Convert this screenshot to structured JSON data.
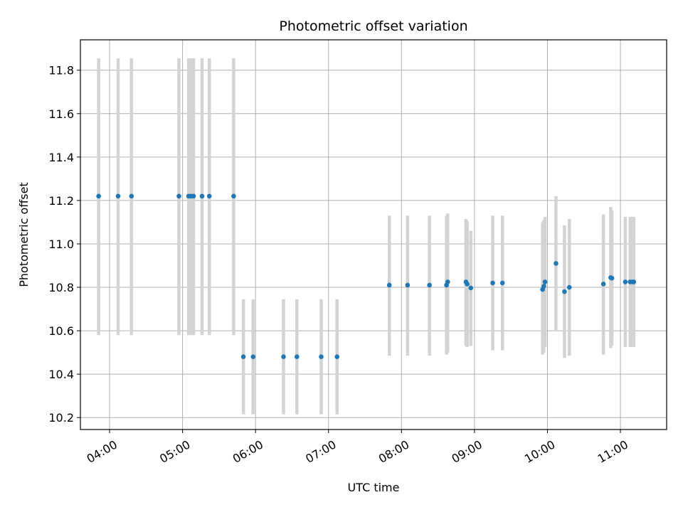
{
  "chart_data": {
    "type": "scatter",
    "title": "Photometric offset variation",
    "xlabel": "UTC time",
    "ylabel": "Photometric offset",
    "xlim": [
      "03:36",
      "11:38"
    ],
    "ylim": [
      10.145,
      11.94
    ],
    "grid": true,
    "x_ticks": [
      "04:00",
      "05:00",
      "06:00",
      "07:00",
      "08:00",
      "09:00",
      "10:00",
      "11:00"
    ],
    "y_ticks": [
      10.2,
      10.4,
      10.6,
      10.8,
      11.0,
      11.2,
      11.4,
      11.6,
      11.8
    ],
    "y_tick_labels": [
      "10.2",
      "10.4",
      "10.6",
      "10.8",
      "11.0",
      "11.2",
      "11.4",
      "11.6",
      "11.8"
    ],
    "colors": {
      "points": "#1f77b4",
      "error_bars": "#d3d3d3",
      "grid": "#b0b0b0"
    },
    "series": [
      {
        "points": [
          {
            "x": "03:51",
            "y": 11.22,
            "ylow": 10.58,
            "yhigh": 11.855
          },
          {
            "x": "04:07",
            "y": 11.22,
            "ylow": 10.58,
            "yhigh": 11.855
          },
          {
            "x": "04:18",
            "y": 11.22,
            "ylow": 10.58,
            "yhigh": 11.855
          },
          {
            "x": "04:57",
            "y": 11.22,
            "ylow": 10.58,
            "yhigh": 11.855
          },
          {
            "x": "05:05",
            "y": 11.22,
            "ylow": 10.58,
            "yhigh": 11.855
          },
          {
            "x": "05:07",
            "y": 11.22,
            "ylow": 10.58,
            "yhigh": 11.855
          },
          {
            "x": "05:09",
            "y": 11.22,
            "ylow": 10.58,
            "yhigh": 11.855
          },
          {
            "x": "05:16",
            "y": 11.22,
            "ylow": 10.58,
            "yhigh": 11.855
          },
          {
            "x": "05:22",
            "y": 11.22,
            "ylow": 10.58,
            "yhigh": 11.855
          },
          {
            "x": "05:42",
            "y": 11.22,
            "ylow": 10.58,
            "yhigh": 11.855
          },
          {
            "x": "05:50",
            "y": 10.48,
            "ylow": 10.215,
            "yhigh": 10.745
          },
          {
            "x": "05:58",
            "y": 10.48,
            "ylow": 10.215,
            "yhigh": 10.745
          },
          {
            "x": "06:23",
            "y": 10.48,
            "ylow": 10.215,
            "yhigh": 10.745
          },
          {
            "x": "06:34",
            "y": 10.48,
            "ylow": 10.215,
            "yhigh": 10.745
          },
          {
            "x": "06:54",
            "y": 10.48,
            "ylow": 10.215,
            "yhigh": 10.745
          },
          {
            "x": "07:07",
            "y": 10.48,
            "ylow": 10.215,
            "yhigh": 10.745
          },
          {
            "x": "07:50",
            "y": 10.81,
            "ylow": 10.485,
            "yhigh": 11.13
          },
          {
            "x": "08:05",
            "y": 10.81,
            "ylow": 10.485,
            "yhigh": 11.13
          },
          {
            "x": "08:23",
            "y": 10.81,
            "ylow": 10.485,
            "yhigh": 11.13
          },
          {
            "x": "08:37",
            "y": 10.81,
            "ylow": 10.49,
            "yhigh": 11.13
          },
          {
            "x": "08:38",
            "y": 10.825,
            "ylow": 10.5,
            "yhigh": 11.14
          },
          {
            "x": "08:53",
            "y": 10.825,
            "ylow": 10.53,
            "yhigh": 11.115
          },
          {
            "x": "08:54",
            "y": 10.815,
            "ylow": 10.525,
            "yhigh": 11.105
          },
          {
            "x": "08:57",
            "y": 10.797,
            "ylow": 10.53,
            "yhigh": 11.06
          },
          {
            "x": "09:15",
            "y": 10.82,
            "ylow": 10.51,
            "yhigh": 11.13
          },
          {
            "x": "09:23",
            "y": 10.82,
            "ylow": 10.51,
            "yhigh": 11.13
          },
          {
            "x": "09:56",
            "y": 10.79,
            "ylow": 10.49,
            "yhigh": 11.1
          },
          {
            "x": "09:57",
            "y": 10.805,
            "ylow": 10.5,
            "yhigh": 11.11
          },
          {
            "x": "09:58",
            "y": 10.825,
            "ylow": 10.525,
            "yhigh": 11.125
          },
          {
            "x": "10:07",
            "y": 10.91,
            "ylow": 10.6,
            "yhigh": 11.22
          },
          {
            "x": "10:14",
            "y": 10.78,
            "ylow": 10.475,
            "yhigh": 11.085
          },
          {
            "x": "10:18",
            "y": 10.8,
            "ylow": 10.485,
            "yhigh": 11.115
          },
          {
            "x": "10:46",
            "y": 10.815,
            "ylow": 10.49,
            "yhigh": 11.135
          },
          {
            "x": "10:52",
            "y": 10.845,
            "ylow": 10.52,
            "yhigh": 11.17
          },
          {
            "x": "10:53",
            "y": 10.842,
            "ylow": 10.53,
            "yhigh": 11.155
          },
          {
            "x": "11:04",
            "y": 10.825,
            "ylow": 10.525,
            "yhigh": 11.125
          },
          {
            "x": "11:08",
            "y": 10.825,
            "ylow": 10.525,
            "yhigh": 11.125
          },
          {
            "x": "11:10",
            "y": 10.825,
            "ylow": 10.525,
            "yhigh": 11.125
          },
          {
            "x": "11:11",
            "y": 10.825,
            "ylow": 10.525,
            "yhigh": 11.125
          }
        ]
      }
    ]
  }
}
